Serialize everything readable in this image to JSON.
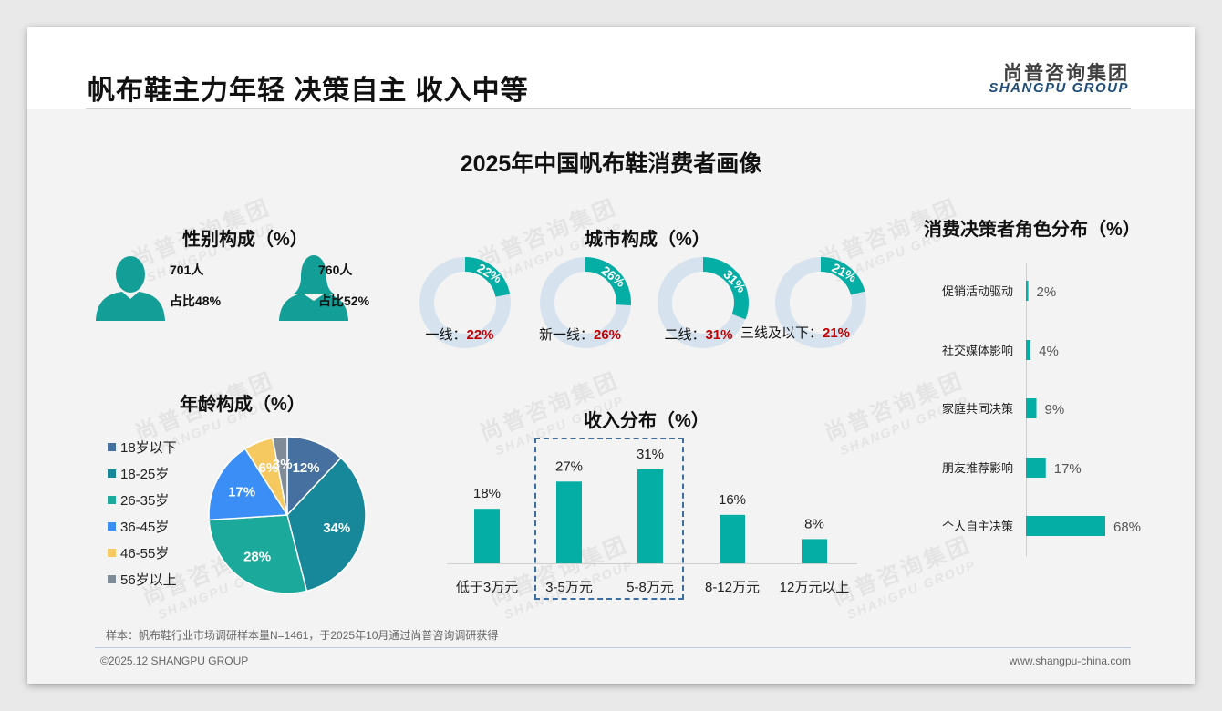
{
  "header": {
    "title": "帆布鞋主力年轻 决策自主 收入中等",
    "logo_cn": "尚普咨询集团",
    "logo_en": "SHANGPU GROUP"
  },
  "main_title": "2025年中国帆布鞋消费者画像",
  "watermark": {
    "cn": "尚普咨询集团",
    "en": "SHANGPU GROUP"
  },
  "colors": {
    "teal": "#04aea5",
    "donut_track": "#d6e3ef",
    "highlight_red": "#c00000",
    "accent_blue": "#1f4e79",
    "silhouette": "#139e98"
  },
  "gender": {
    "title": "性别构成（%）",
    "male": {
      "icon": "male-silhouette-icon",
      "count": "701人",
      "share": "占比48%"
    },
    "female": {
      "icon": "female-silhouette-icon",
      "count": "760人",
      "share": "占比52%"
    }
  },
  "chart_data": [
    {
      "type": "donut",
      "title": "城市构成（%）",
      "categories": [
        "一线",
        "新一线",
        "二线",
        "三线及以下"
      ],
      "values": [
        22,
        26,
        31,
        21
      ],
      "slice_labels": [
        "22%",
        "26%",
        "31%",
        "21%"
      ],
      "captions": [
        "一线：",
        "新一线：",
        "二线：",
        "三线及以下："
      ],
      "caption_values": [
        "22%",
        "26%",
        "31%",
        "21%"
      ]
    },
    {
      "type": "pie",
      "title": "年龄构成（%）",
      "categories": [
        "18岁以下",
        "18-25岁",
        "26-35岁",
        "36-45岁",
        "46-55岁",
        "56岁以上"
      ],
      "values": [
        12,
        34,
        28,
        17,
        6,
        3
      ],
      "slice_labels": [
        "12%",
        "34%",
        "28%",
        "17%",
        "6%",
        "3%"
      ],
      "colors": [
        "#45709f",
        "#17879a",
        "#1aa99a",
        "#3b8ef5",
        "#f5c960",
        "#7f8c98"
      ],
      "legend": "left"
    },
    {
      "type": "bar",
      "title": "收入分布（%）",
      "categories": [
        "低于3万元",
        "3-5万元",
        "5-8万元",
        "8-12万元",
        "12万元以上"
      ],
      "values": [
        18,
        27,
        31,
        16,
        8
      ],
      "value_labels": [
        "18%",
        "27%",
        "31%",
        "16%",
        "8%"
      ],
      "highlighted": [
        "3-5万元",
        "5-8万元"
      ]
    },
    {
      "type": "bar",
      "orientation": "horizontal",
      "title": "消费决策者角色分布（%）",
      "categories": [
        "促销活动驱动",
        "社交媒体影响",
        "家庭共同决策",
        "朋友推荐影响",
        "个人自主决策"
      ],
      "values": [
        2,
        4,
        9,
        17,
        68
      ],
      "value_labels": [
        "2%",
        "4%",
        "9%",
        "17%",
        "68%"
      ]
    }
  ],
  "footnote": "样本：帆布鞋行业市场调研样本量N=1461，于2025年10月通过尚普咨询调研获得",
  "footer": {
    "copyright": "©2025.12 SHANGPU GROUP",
    "website": "www.shangpu-china.com"
  }
}
